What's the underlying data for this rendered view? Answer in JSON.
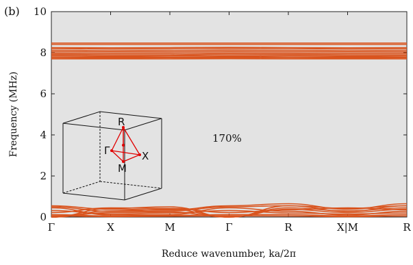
{
  "chart_data": {
    "type": "line",
    "panel_label": "(b)",
    "annotation": "170%",
    "xlabel": "Reduce wavenumber, ka/2π",
    "ylabel": "Frequency (MHz)",
    "ylim": [
      0,
      10
    ],
    "yticks": [
      0,
      2,
      4,
      6,
      8,
      10
    ],
    "x_ticks": [
      "Γ",
      "X",
      "M",
      "Γ",
      "R",
      "X|M",
      "R"
    ],
    "grid": false,
    "background": "#e3e3e3",
    "line_color": "#d9541e",
    "high_bands": [
      {
        "name": "",
        "values": [
          8.47,
          8.47,
          8.47,
          8.47,
          8.47,
          8.47,
          8.47
        ]
      },
      {
        "name": "",
        "values": [
          8.4,
          8.4,
          8.4,
          8.4,
          8.4,
          8.4,
          8.4
        ]
      },
      {
        "name": "",
        "values": [
          8.25,
          8.24,
          8.25,
          8.26,
          8.25,
          8.24,
          8.25
        ]
      },
      {
        "name": "",
        "values": [
          8.2,
          8.18,
          8.19,
          8.21,
          8.2,
          8.18,
          8.19
        ]
      },
      {
        "name": "",
        "values": [
          8.12,
          8.1,
          8.11,
          8.13,
          8.12,
          8.1,
          8.11
        ]
      },
      {
        "name": "",
        "values": [
          8.05,
          8.04,
          8.04,
          8.06,
          8.05,
          8.04,
          8.04
        ]
      },
      {
        "name": "",
        "values": [
          7.98,
          7.96,
          7.97,
          7.99,
          7.98,
          7.96,
          7.97
        ]
      },
      {
        "name": "",
        "values": [
          7.92,
          7.9,
          7.9,
          7.93,
          7.92,
          7.9,
          7.9
        ]
      },
      {
        "name": "",
        "values": [
          7.86,
          7.84,
          7.85,
          7.86,
          7.86,
          7.84,
          7.85
        ]
      },
      {
        "name": "",
        "values": [
          7.8,
          7.79,
          7.79,
          7.81,
          7.8,
          7.79,
          7.79
        ]
      },
      {
        "name": "",
        "values": [
          7.75,
          7.74,
          7.75,
          7.76,
          7.75,
          7.74,
          7.75
        ]
      },
      {
        "name": "",
        "values": [
          7.7,
          7.7,
          7.7,
          7.71,
          7.7,
          7.7,
          7.7
        ]
      }
    ],
    "low_bands": [
      {
        "name": "",
        "values": [
          0.0,
          0.42,
          0.5,
          0.0,
          0.55,
          0.42,
          0.55
        ]
      },
      {
        "name": "",
        "values": [
          0.0,
          0.3,
          0.38,
          0.0,
          0.45,
          0.3,
          0.45
        ]
      },
      {
        "name": "",
        "values": [
          0.0,
          0.22,
          0.25,
          0.0,
          0.38,
          0.22,
          0.38
        ]
      },
      {
        "name": "",
        "values": [
          0.55,
          0.38,
          0.35,
          0.55,
          0.65,
          0.38,
          0.65
        ]
      },
      {
        "name": "",
        "values": [
          0.5,
          0.28,
          0.3,
          0.5,
          0.55,
          0.28,
          0.55
        ]
      },
      {
        "name": "",
        "values": [
          0.45,
          0.1,
          0.12,
          0.45,
          0.28,
          0.1,
          0.28
        ]
      },
      {
        "name": "",
        "values": [
          0.32,
          0.15,
          0.2,
          0.32,
          0.2,
          0.15,
          0.2
        ]
      },
      {
        "name": "",
        "values": [
          0.22,
          0.45,
          0.42,
          0.22,
          0.35,
          0.45,
          0.35
        ]
      },
      {
        "name": "",
        "values": [
          0.12,
          0.05,
          0.08,
          0.12,
          0.12,
          0.05,
          0.12
        ]
      },
      {
        "name": "",
        "values": [
          0.06,
          0.02,
          0.04,
          0.06,
          0.05,
          0.02,
          0.05
        ]
      }
    ],
    "inset": {
      "labels": [
        "R",
        "Γ",
        "X",
        "M"
      ]
    }
  }
}
